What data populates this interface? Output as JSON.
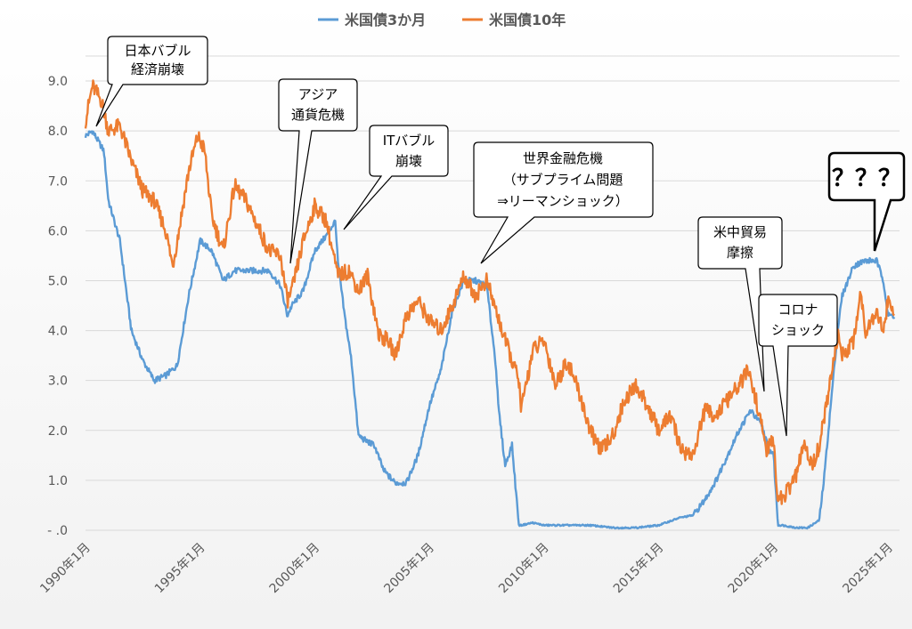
{
  "legend": {
    "position": "top",
    "items": [
      "米国債3か月",
      "米国債10年"
    ]
  },
  "colors": {
    "series_3m": "#5b9bd5",
    "series_10y": "#ed7d31",
    "grid": "#d9d9d9",
    "axis_text": "#595959"
  },
  "annotations": [
    {
      "lines": [
        "日本バブル",
        "経済崩壊"
      ]
    },
    {
      "lines": [
        "アジア",
        "通貨危機"
      ]
    },
    {
      "lines": [
        "ITバブル",
        "崩壊"
      ]
    },
    {
      "lines": [
        "世界金融危機",
        "（サブプライム問題",
        "⇒リーマンショック）"
      ]
    },
    {
      "lines": [
        "米中貿易",
        "摩擦"
      ]
    },
    {
      "lines": [
        "コロナ",
        "ショック"
      ]
    },
    {
      "lines": [
        "？？？"
      ]
    }
  ],
  "chart_data": {
    "type": "line",
    "xlim": [
      1990.0,
      2025.5
    ],
    "ylim": [
      0,
      9.5
    ],
    "grid": true,
    "legend_position": "top",
    "y_ticks": [
      0,
      1,
      2,
      3,
      4,
      5,
      6,
      7,
      8,
      9
    ],
    "y_tick_labels": [
      "- .0",
      "1.0",
      "2.0",
      "3.0",
      "4.0",
      "5.0",
      "6.0",
      "7.0",
      "8.0",
      "9.0"
    ],
    "x_ticks": [
      1990,
      1995,
      2000,
      2005,
      2010,
      2015,
      2020,
      2025
    ],
    "x_tick_labels": [
      "1990年1月",
      "1995年1月",
      "2000年1月",
      "2005年1月",
      "2010年1月",
      "2015年1月",
      "2020年1月",
      "2025年1月"
    ],
    "series": [
      {
        "name": "米国債3か月",
        "x": [
          1990.0,
          1990.3,
          1990.8,
          1991.0,
          1991.5,
          1992.0,
          1992.5,
          1993.0,
          1993.5,
          1994.0,
          1994.5,
          1995.0,
          1995.5,
          1996.0,
          1996.5,
          1997.0,
          1997.5,
          1998.0,
          1998.5,
          1998.8,
          1999.0,
          1999.5,
          2000.0,
          2000.5,
          2000.9,
          2001.0,
          2001.3,
          2001.6,
          2001.9,
          2002.2,
          2002.6,
          2003.0,
          2003.5,
          2004.0,
          2004.5,
          2005.0,
          2005.5,
          2006.0,
          2006.5,
          2007.0,
          2007.5,
          2007.9,
          2008.0,
          2008.3,
          2008.6,
          2008.9,
          2009.0,
          2009.5,
          2010.0,
          2011.0,
          2012.0,
          2013.0,
          2014.0,
          2015.0,
          2015.9,
          2016.5,
          2017.0,
          2017.5,
          2018.0,
          2018.5,
          2019.0,
          2019.5,
          2019.8,
          2020.0,
          2020.2,
          2020.4,
          2021.0,
          2021.5,
          2022.0,
          2022.2,
          2022.5,
          2022.8,
          2023.0,
          2023.5,
          2024.0,
          2024.5,
          2024.8,
          2025.0,
          2025.3
        ],
        "values": [
          7.9,
          8.0,
          7.6,
          6.6,
          5.8,
          4.0,
          3.4,
          3.0,
          3.1,
          3.3,
          4.7,
          5.8,
          5.6,
          5.0,
          5.2,
          5.2,
          5.2,
          5.2,
          4.9,
          4.3,
          4.5,
          4.8,
          5.6,
          5.9,
          6.2,
          5.4,
          4.3,
          3.4,
          1.9,
          1.8,
          1.7,
          1.2,
          0.95,
          0.95,
          1.5,
          2.5,
          3.2,
          4.4,
          5.0,
          5.0,
          4.9,
          3.3,
          2.5,
          1.3,
          1.7,
          0.1,
          0.1,
          0.15,
          0.1,
          0.1,
          0.1,
          0.05,
          0.05,
          0.1,
          0.25,
          0.3,
          0.6,
          1.0,
          1.5,
          2.0,
          2.4,
          2.1,
          1.6,
          1.55,
          0.1,
          0.1,
          0.05,
          0.05,
          0.2,
          1.0,
          2.5,
          4.0,
          4.7,
          5.3,
          5.4,
          5.4,
          5.0,
          4.3,
          4.3
        ]
      },
      {
        "name": "米国債10年",
        "x": [
          1990.0,
          1990.3,
          1990.7,
          1991.0,
          1991.5,
          1992.0,
          1992.5,
          1993.0,
          1993.5,
          1993.8,
          1994.0,
          1994.5,
          1994.9,
          1995.2,
          1995.5,
          1996.0,
          1996.5,
          1997.0,
          1997.5,
          1998.0,
          1998.5,
          1998.8,
          1999.0,
          1999.5,
          2000.0,
          2000.5,
          2001.0,
          2001.5,
          2001.9,
          2002.3,
          2002.8,
          2003.2,
          2003.5,
          2004.0,
          2004.5,
          2005.0,
          2005.5,
          2006.0,
          2006.5,
          2007.0,
          2007.5,
          2007.9,
          2008.3,
          2008.9,
          2009.0,
          2009.5,
          2010.0,
          2010.5,
          2011.0,
          2011.5,
          2012.0,
          2012.5,
          2013.0,
          2013.5,
          2014.0,
          2014.5,
          2015.0,
          2015.5,
          2016.0,
          2016.5,
          2017.0,
          2017.5,
          2018.0,
          2018.5,
          2018.9,
          2019.3,
          2019.7,
          2020.0,
          2020.2,
          2020.5,
          2021.0,
          2021.3,
          2021.7,
          2022.0,
          2022.5,
          2022.8,
          2023.0,
          2023.5,
          2023.8,
          2024.0,
          2024.5,
          2024.8,
          2025.0,
          2025.3
        ],
        "values": [
          8.2,
          8.9,
          8.6,
          8.0,
          8.1,
          7.4,
          6.8,
          6.6,
          6.0,
          5.3,
          5.8,
          7.2,
          7.9,
          7.6,
          6.3,
          5.6,
          6.9,
          6.6,
          6.1,
          5.6,
          5.5,
          4.6,
          4.8,
          5.8,
          6.5,
          6.2,
          5.1,
          5.2,
          4.8,
          5.1,
          3.9,
          3.8,
          3.5,
          4.3,
          4.6,
          4.2,
          4.0,
          4.5,
          5.1,
          4.7,
          5.0,
          4.4,
          3.8,
          3.0,
          2.4,
          3.6,
          3.8,
          2.9,
          3.4,
          2.8,
          2.0,
          1.6,
          1.9,
          2.6,
          2.9,
          2.5,
          2.0,
          2.3,
          1.6,
          1.5,
          2.4,
          2.3,
          2.6,
          2.9,
          3.2,
          2.5,
          1.6,
          1.8,
          0.6,
          0.7,
          1.1,
          1.7,
          1.3,
          1.7,
          3.0,
          3.9,
          3.5,
          3.8,
          4.8,
          4.0,
          4.4,
          4.0,
          4.6,
          4.3
        ]
      }
    ]
  }
}
